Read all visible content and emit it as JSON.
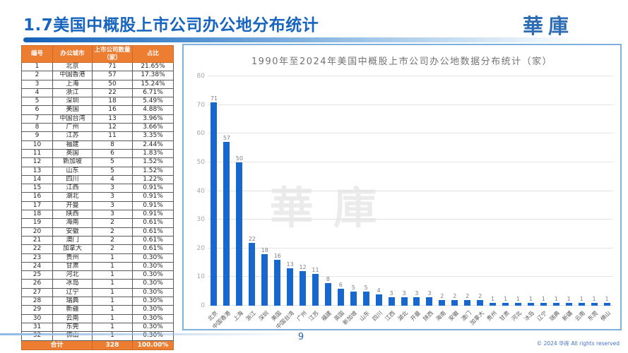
{
  "header": {
    "title": "1.7美国中概股上市公司办公地分布统计",
    "logo": "華庫"
  },
  "table": {
    "headers": [
      "编号",
      "办公城市",
      "上市公司数量（家）",
      "占比"
    ],
    "rows": [
      [
        "1",
        "北京",
        "71",
        "21.65%"
      ],
      [
        "2",
        "中国香港",
        "57",
        "17.38%"
      ],
      [
        "3",
        "上海",
        "50",
        "15.24%"
      ],
      [
        "4",
        "浙江",
        "22",
        "6.71%"
      ],
      [
        "5",
        "深圳",
        "18",
        "5.49%"
      ],
      [
        "6",
        "美国",
        "16",
        "4.88%"
      ],
      [
        "7",
        "中国台湾",
        "13",
        "3.96%"
      ],
      [
        "8",
        "广州",
        "12",
        "3.66%"
      ],
      [
        "9",
        "江苏",
        "11",
        "3.35%"
      ],
      [
        "10",
        "福建",
        "8",
        "2.44%"
      ],
      [
        "11",
        "英国",
        "6",
        "1.83%"
      ],
      [
        "12",
        "新加坡",
        "5",
        "1.52%"
      ],
      [
        "13",
        "山东",
        "5",
        "1.52%"
      ],
      [
        "14",
        "四川",
        "4",
        "1.22%"
      ],
      [
        "15",
        "江西",
        "3",
        "0.91%"
      ],
      [
        "16",
        "湖北",
        "3",
        "0.91%"
      ],
      [
        "17",
        "开曼",
        "3",
        "0.91%"
      ],
      [
        "18",
        "陕西",
        "3",
        "0.91%"
      ],
      [
        "19",
        "海南",
        "2",
        "0.61%"
      ],
      [
        "20",
        "安徽",
        "2",
        "0.61%"
      ],
      [
        "21",
        "澳门",
        "2",
        "0.61%"
      ],
      [
        "22",
        "加拿大",
        "2",
        "0.61%"
      ],
      [
        "23",
        "贵州",
        "1",
        "0.30%"
      ],
      [
        "24",
        "甘肃",
        "1",
        "0.30%"
      ],
      [
        "25",
        "河北",
        "1",
        "0.30%"
      ],
      [
        "26",
        "冰岛",
        "1",
        "0.30%"
      ],
      [
        "27",
        "辽宁",
        "1",
        "0.30%"
      ],
      [
        "28",
        "瑞典",
        "1",
        "0.30%"
      ],
      [
        "29",
        "新疆",
        "1",
        "0.30%"
      ],
      [
        "30",
        "云南",
        "1",
        "0.30%"
      ],
      [
        "31",
        "东莞",
        "1",
        "0.30%"
      ],
      [
        "32",
        "佛山",
        "1",
        "0.30%"
      ]
    ],
    "total": {
      "label": "合计",
      "count": "328",
      "pct": "100.00%"
    }
  },
  "chart_data": {
    "type": "bar",
    "title": "1990年至2024年美国中概股上市公司办公地数据分布统计（家）",
    "categories": [
      "北京",
      "中国香港",
      "上海",
      "浙江",
      "深圳",
      "美国",
      "中国台湾",
      "广州",
      "江苏",
      "福建",
      "英国",
      "新加坡",
      "山东",
      "四川",
      "江西",
      "湖北",
      "开曼",
      "陕西",
      "海南",
      "安徽",
      "澳门",
      "加拿大",
      "贵州",
      "甘肃",
      "河北",
      "冰岛",
      "辽宁",
      "瑞典",
      "新疆",
      "云南",
      "东莞",
      "佛山"
    ],
    "values": [
      71,
      57,
      50,
      22,
      18,
      16,
      13,
      12,
      11,
      8,
      6,
      5,
      5,
      4,
      3,
      3,
      3,
      3,
      2,
      2,
      2,
      2,
      1,
      1,
      1,
      1,
      1,
      1,
      1,
      1,
      1,
      1
    ],
    "xlabel": "",
    "ylabel": "",
    "ylim": [
      0,
      80
    ],
    "yticks": [
      0,
      10,
      20,
      30,
      40,
      50,
      60,
      70,
      80
    ],
    "grid": true,
    "legend": "none",
    "data_labels": true,
    "bar_color": "#1667CE",
    "watermark": "華庫"
  },
  "footer": {
    "page_number": "9",
    "copyright": "© 2024 华库  All rights reserved"
  },
  "colors": {
    "accent_blue": "#1765BE",
    "table_orange": "#ED7D31",
    "chart_border": "#7EB0DC",
    "bar_blue": "#1667CE"
  }
}
